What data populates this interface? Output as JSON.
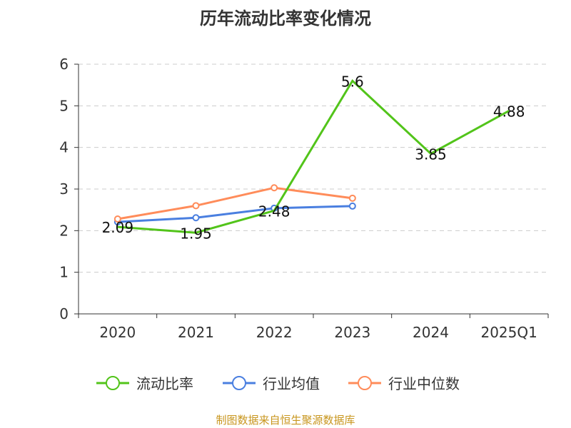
{
  "chart_data": {
    "type": "line",
    "title": "历年流动比率变化情况",
    "categories": [
      "2020",
      "2021",
      "2022",
      "2023",
      "2024",
      "2025Q1"
    ],
    "ylim": [
      0,
      6
    ],
    "yticks": [
      0,
      1,
      2,
      3,
      4,
      5,
      6
    ],
    "grid": true,
    "legend_position": "bottom",
    "series": [
      {
        "name": "流动比率",
        "color": "#52c41a",
        "values": [
          2.09,
          1.95,
          2.48,
          5.6,
          3.85,
          4.88
        ],
        "labels": [
          "2.09",
          "1.95",
          "2.48",
          "5.6",
          "3.85",
          "4.88"
        ]
      },
      {
        "name": "行业均值",
        "color": "#4a7fe0",
        "values": [
          2.21,
          2.31,
          2.54,
          2.59,
          null,
          null
        ]
      },
      {
        "name": "行业中位数",
        "color": "#ff8c5a",
        "values": [
          2.28,
          2.6,
          3.03,
          2.78,
          null,
          null
        ]
      }
    ]
  },
  "source": "制图数据来自恒生聚源数据库"
}
